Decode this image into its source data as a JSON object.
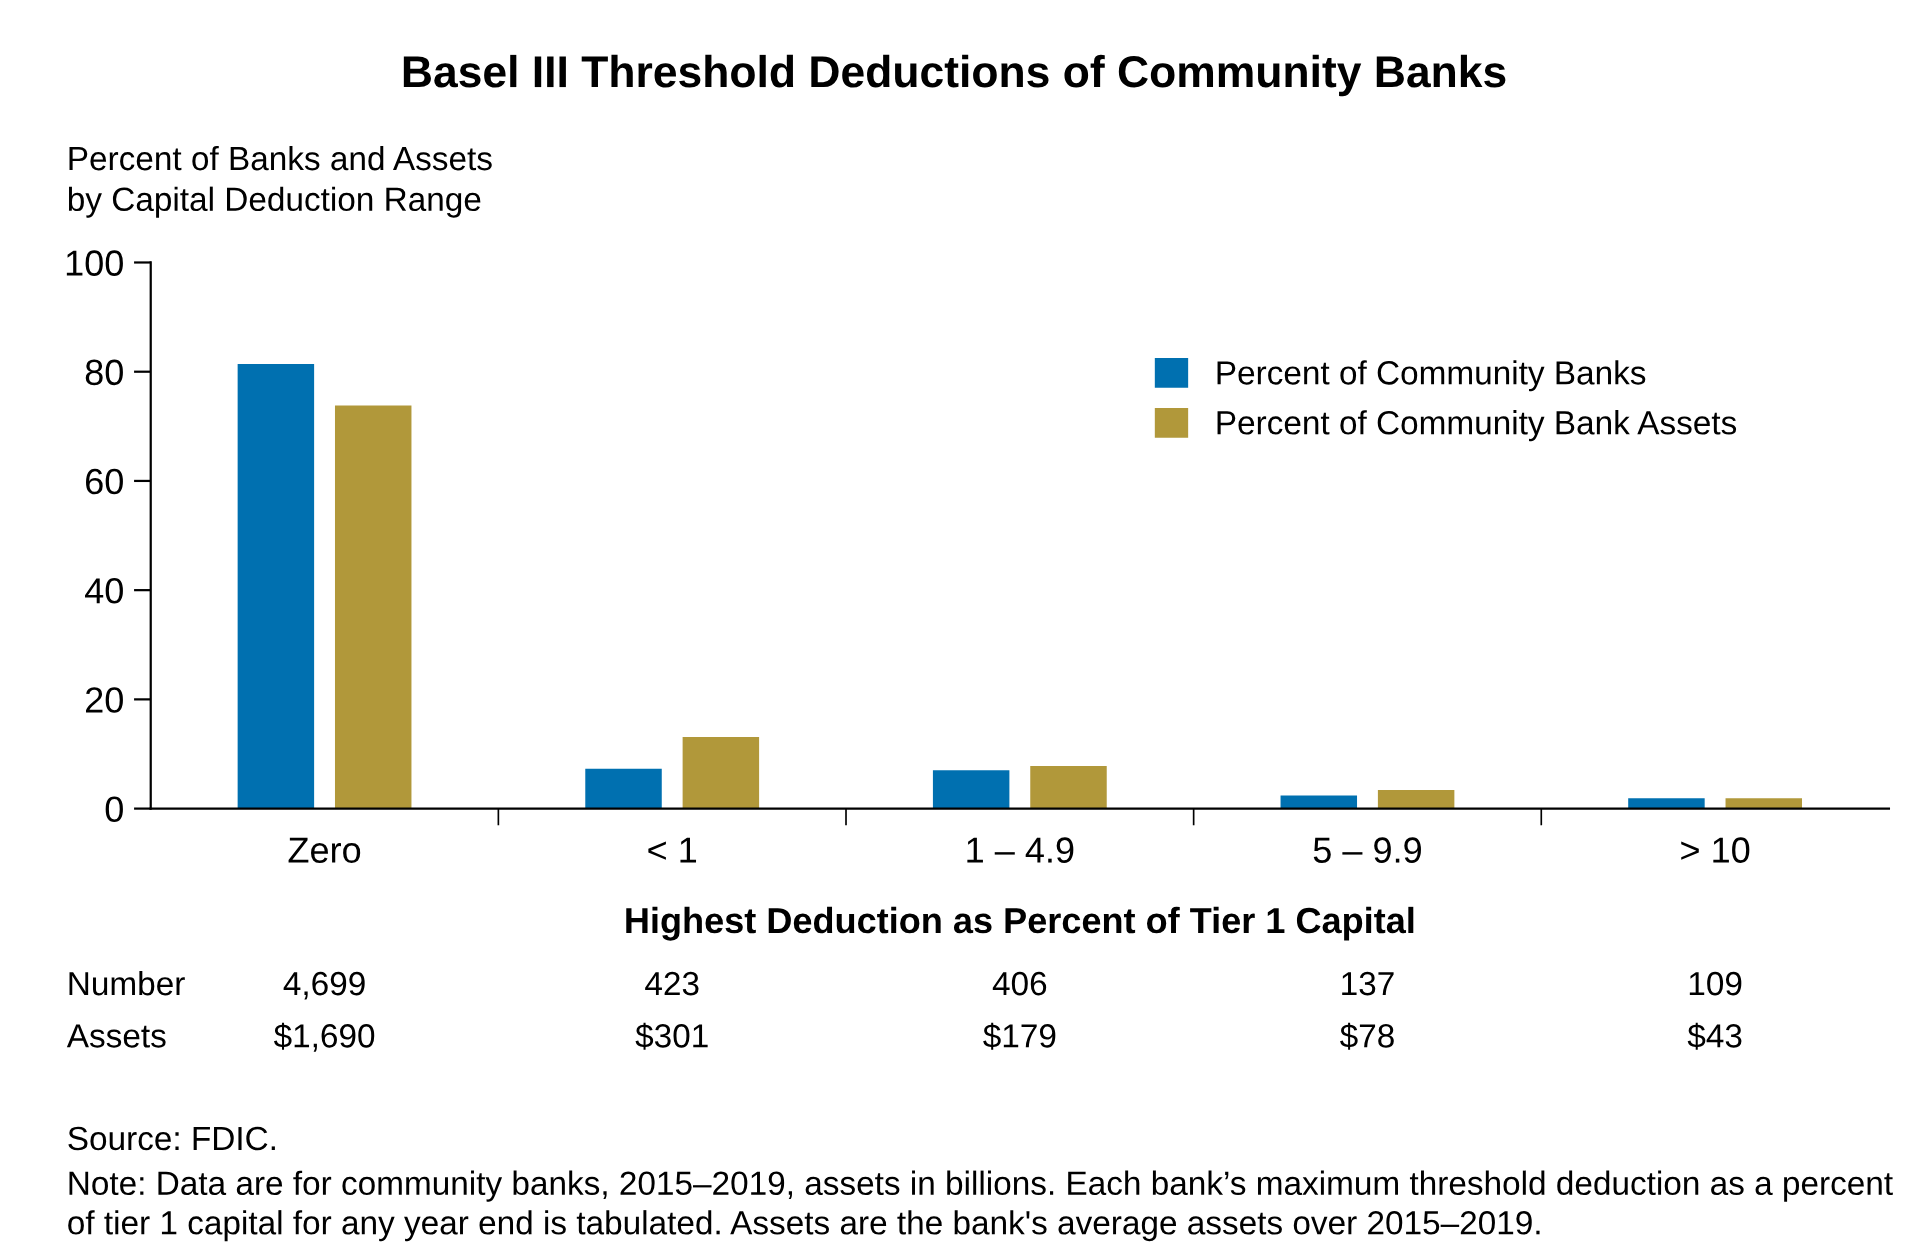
{
  "chart_data": {
    "type": "bar",
    "title": "Basel III Threshold Deductions of Community Banks",
    "ylabel": "Percent of Banks and Assets\nby Capital Deduction Range",
    "xlabel": "Highest Deduction as Percent of Tier 1 Capital",
    "categories": [
      "Zero",
      "< 1",
      "1 – 4.9",
      "5 – 9.9",
      "> 10"
    ],
    "series": [
      {
        "name": "Percent of Community Banks",
        "color": "#0070b0",
        "values": [
          81.4,
          7.3,
          7.0,
          2.4,
          1.9
        ]
      },
      {
        "name": "Percent of Community Bank Assets",
        "color": "#b1983a",
        "values": [
          73.8,
          13.1,
          7.8,
          3.4,
          1.9
        ]
      }
    ],
    "ylim": [
      0,
      100
    ],
    "yticks": [
      0,
      20,
      40,
      60,
      80,
      100
    ],
    "grid": false,
    "legend": "top right",
    "annotations": [
      "Number",
      "4,699",
      "423",
      "406",
      "137",
      "109",
      "Assets",
      "$1,690",
      "$301",
      "$179",
      "$78",
      "$43",
      "Source: FDIC.",
      "Note: Data are for community banks, 2015–2019, assets in billions. Each bank’s maximum threshold deduction as a percent of tier 1 capital for any year end is tabulated. Assets are the bank's average assets over 2015–2019."
    ]
  }
}
